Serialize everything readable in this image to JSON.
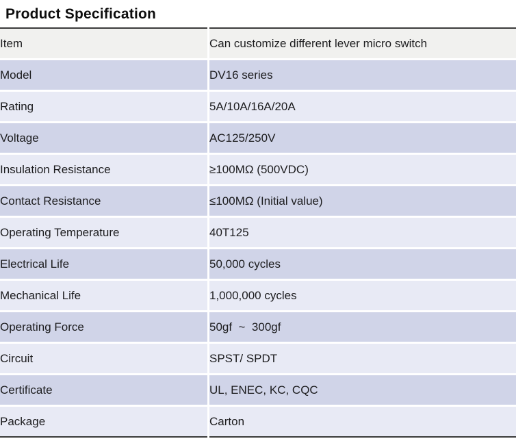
{
  "page": {
    "title": "Product Specification"
  },
  "colors": {
    "row_gray": "#f1f1ef",
    "row_lavender_dark": "#d0d4e8",
    "row_lavender_light": "#e8eaf5",
    "rule_dark": "#3a3a3a",
    "text": "#1c1c1e",
    "background": "#ffffff"
  },
  "table": {
    "rows": [
      {
        "key": "Item",
        "value": "Can customize different lever micro switch",
        "tone": "gray"
      },
      {
        "key": "Model",
        "value": "DV16 series",
        "tone": "dark"
      },
      {
        "key": "Rating",
        "value": "5A/10A/16A/20A",
        "tone": "light"
      },
      {
        "key": "Voltage",
        "value": "AC125/250V",
        "tone": "dark"
      },
      {
        "key": "Insulation Resistance",
        "value": "≥100MΩ (500VDC)",
        "tone": "light"
      },
      {
        "key": "Contact Resistance",
        "value": "≤100MΩ (Initial value)",
        "tone": "dark"
      },
      {
        "key": "Operating Temperature",
        "value": "40T125",
        "tone": "light"
      },
      {
        "key": "Electrical Life",
        "value": "50,000 cycles",
        "tone": "dark"
      },
      {
        "key": "Mechanical Life",
        "value": "1,000,000 cycles",
        "tone": "light"
      },
      {
        "key": "Operating Force",
        "value": "50gf  ~  300gf",
        "tone": "dark"
      },
      {
        "key": "Circuit",
        "value": "SPST/ SPDT",
        "tone": "light"
      },
      {
        "key": "Certificate",
        "value": "UL, ENEC, KC, CQC",
        "tone": "dark"
      },
      {
        "key": "Package",
        "value": "Carton",
        "tone": "light"
      }
    ]
  }
}
